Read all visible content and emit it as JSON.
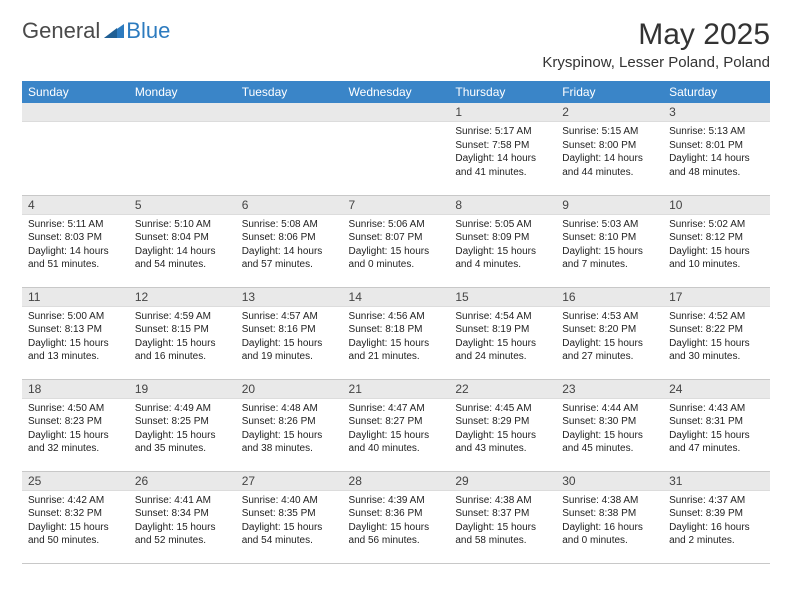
{
  "logo": {
    "word1": "General",
    "word2": "Blue"
  },
  "title": "May 2025",
  "location": "Kryspinow, Lesser Poland, Poland",
  "colors": {
    "header_bg": "#3a85c8",
    "header_fg": "#ffffff",
    "daynum_bg": "#e9e9e9",
    "row_border": "#c8c8c8",
    "logo_blue": "#2d7bbf",
    "text": "#333333",
    "body_bg": "#ffffff"
  },
  "weekdays": [
    "Sunday",
    "Monday",
    "Tuesday",
    "Wednesday",
    "Thursday",
    "Friday",
    "Saturday"
  ],
  "weeks": [
    [
      {
        "empty": true
      },
      {
        "empty": true
      },
      {
        "empty": true
      },
      {
        "empty": true
      },
      {
        "day": "1",
        "sunrise": "5:17 AM",
        "sunset": "7:58 PM",
        "daylight": "14 hours and 41 minutes."
      },
      {
        "day": "2",
        "sunrise": "5:15 AM",
        "sunset": "8:00 PM",
        "daylight": "14 hours and 44 minutes."
      },
      {
        "day": "3",
        "sunrise": "5:13 AM",
        "sunset": "8:01 PM",
        "daylight": "14 hours and 48 minutes."
      }
    ],
    [
      {
        "day": "4",
        "sunrise": "5:11 AM",
        "sunset": "8:03 PM",
        "daylight": "14 hours and 51 minutes."
      },
      {
        "day": "5",
        "sunrise": "5:10 AM",
        "sunset": "8:04 PM",
        "daylight": "14 hours and 54 minutes."
      },
      {
        "day": "6",
        "sunrise": "5:08 AM",
        "sunset": "8:06 PM",
        "daylight": "14 hours and 57 minutes."
      },
      {
        "day": "7",
        "sunrise": "5:06 AM",
        "sunset": "8:07 PM",
        "daylight": "15 hours and 0 minutes."
      },
      {
        "day": "8",
        "sunrise": "5:05 AM",
        "sunset": "8:09 PM",
        "daylight": "15 hours and 4 minutes."
      },
      {
        "day": "9",
        "sunrise": "5:03 AM",
        "sunset": "8:10 PM",
        "daylight": "15 hours and 7 minutes."
      },
      {
        "day": "10",
        "sunrise": "5:02 AM",
        "sunset": "8:12 PM",
        "daylight": "15 hours and 10 minutes."
      }
    ],
    [
      {
        "day": "11",
        "sunrise": "5:00 AM",
        "sunset": "8:13 PM",
        "daylight": "15 hours and 13 minutes."
      },
      {
        "day": "12",
        "sunrise": "4:59 AM",
        "sunset": "8:15 PM",
        "daylight": "15 hours and 16 minutes."
      },
      {
        "day": "13",
        "sunrise": "4:57 AM",
        "sunset": "8:16 PM",
        "daylight": "15 hours and 19 minutes."
      },
      {
        "day": "14",
        "sunrise": "4:56 AM",
        "sunset": "8:18 PM",
        "daylight": "15 hours and 21 minutes."
      },
      {
        "day": "15",
        "sunrise": "4:54 AM",
        "sunset": "8:19 PM",
        "daylight": "15 hours and 24 minutes."
      },
      {
        "day": "16",
        "sunrise": "4:53 AM",
        "sunset": "8:20 PM",
        "daylight": "15 hours and 27 minutes."
      },
      {
        "day": "17",
        "sunrise": "4:52 AM",
        "sunset": "8:22 PM",
        "daylight": "15 hours and 30 minutes."
      }
    ],
    [
      {
        "day": "18",
        "sunrise": "4:50 AM",
        "sunset": "8:23 PM",
        "daylight": "15 hours and 32 minutes."
      },
      {
        "day": "19",
        "sunrise": "4:49 AM",
        "sunset": "8:25 PM",
        "daylight": "15 hours and 35 minutes."
      },
      {
        "day": "20",
        "sunrise": "4:48 AM",
        "sunset": "8:26 PM",
        "daylight": "15 hours and 38 minutes."
      },
      {
        "day": "21",
        "sunrise": "4:47 AM",
        "sunset": "8:27 PM",
        "daylight": "15 hours and 40 minutes."
      },
      {
        "day": "22",
        "sunrise": "4:45 AM",
        "sunset": "8:29 PM",
        "daylight": "15 hours and 43 minutes."
      },
      {
        "day": "23",
        "sunrise": "4:44 AM",
        "sunset": "8:30 PM",
        "daylight": "15 hours and 45 minutes."
      },
      {
        "day": "24",
        "sunrise": "4:43 AM",
        "sunset": "8:31 PM",
        "daylight": "15 hours and 47 minutes."
      }
    ],
    [
      {
        "day": "25",
        "sunrise": "4:42 AM",
        "sunset": "8:32 PM",
        "daylight": "15 hours and 50 minutes."
      },
      {
        "day": "26",
        "sunrise": "4:41 AM",
        "sunset": "8:34 PM",
        "daylight": "15 hours and 52 minutes."
      },
      {
        "day": "27",
        "sunrise": "4:40 AM",
        "sunset": "8:35 PM",
        "daylight": "15 hours and 54 minutes."
      },
      {
        "day": "28",
        "sunrise": "4:39 AM",
        "sunset": "8:36 PM",
        "daylight": "15 hours and 56 minutes."
      },
      {
        "day": "29",
        "sunrise": "4:38 AM",
        "sunset": "8:37 PM",
        "daylight": "15 hours and 58 minutes."
      },
      {
        "day": "30",
        "sunrise": "4:38 AM",
        "sunset": "8:38 PM",
        "daylight": "16 hours and 0 minutes."
      },
      {
        "day": "31",
        "sunrise": "4:37 AM",
        "sunset": "8:39 PM",
        "daylight": "16 hours and 2 minutes."
      }
    ]
  ],
  "labels": {
    "sunrise": "Sunrise:",
    "sunset": "Sunset:",
    "daylight": "Daylight:"
  }
}
